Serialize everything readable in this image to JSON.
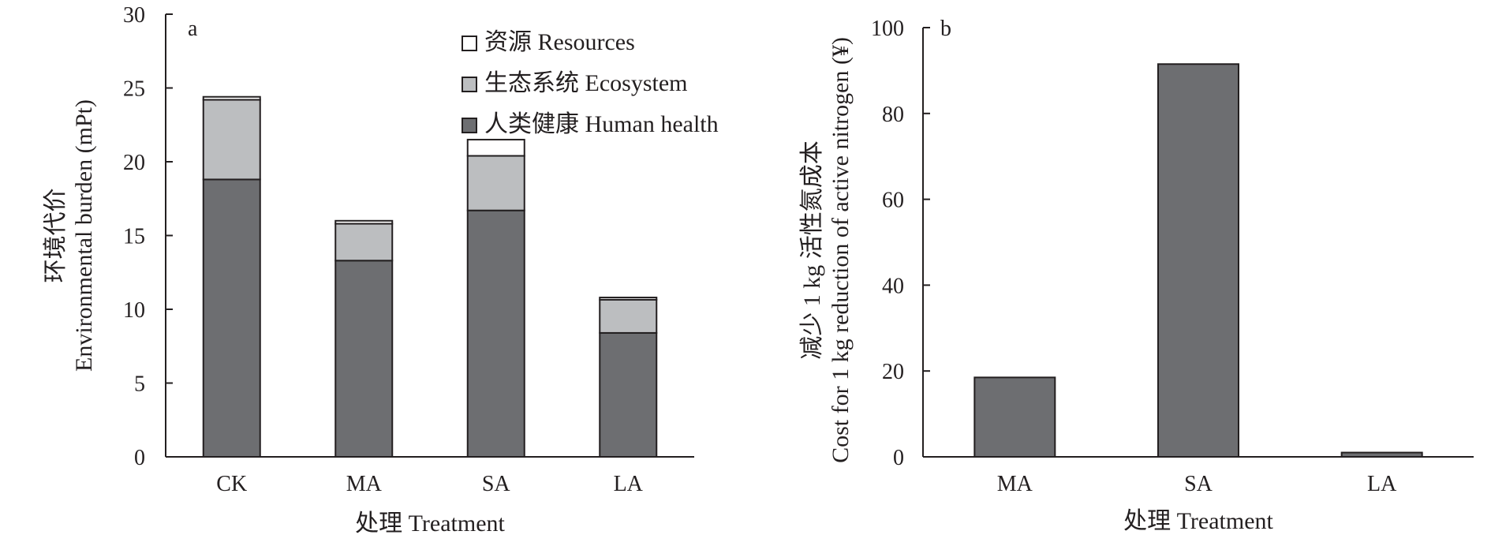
{
  "colors": {
    "human_health": "#6d6e71",
    "ecosystem": "#bcbec0",
    "resources": "#ffffff",
    "outline": "#231f20",
    "cost_bar": "#6d6e71"
  },
  "chart_data": [
    {
      "type": "bar",
      "stacked": true,
      "panel": "a",
      "categories": [
        "CK",
        "MA",
        "SA",
        "LA"
      ],
      "series": [
        {
          "name": "人类健康  Human health",
          "values": [
            18.8,
            13.3,
            16.7,
            8.4
          ]
        },
        {
          "name": "生态系统 Ecosystem",
          "values": [
            5.4,
            2.5,
            3.7,
            2.25
          ]
        },
        {
          "name": "资源 Resources",
          "values": [
            0.2,
            0.2,
            1.1,
            0.15
          ]
        }
      ],
      "legend_order": [
        "资源 Resources",
        "生态系统 Ecosystem",
        "人类健康  Human health"
      ],
      "xlabel": "处理 Treatment",
      "ylabel_cn": "环境代价",
      "ylabel_en": "Environmental burden (mPt)",
      "ylim": [
        0,
        30
      ],
      "yticks": [
        0,
        5,
        10,
        15,
        20,
        25,
        30
      ],
      "grid": false,
      "legend_position": "top-right"
    },
    {
      "type": "bar",
      "panel": "b",
      "categories": [
        "MA",
        "SA",
        "LA"
      ],
      "values": [
        18.5,
        91.5,
        1.0
      ],
      "xlabel": "处理 Treatment",
      "ylabel_cn": "减少 1 kg 活性氮成本",
      "ylabel_en": "Cost for 1 kg reduction of active nitrogen (¥)",
      "ylim": [
        0,
        100
      ],
      "yticks": [
        0,
        20,
        40,
        60,
        80,
        100
      ],
      "grid": false
    }
  ]
}
